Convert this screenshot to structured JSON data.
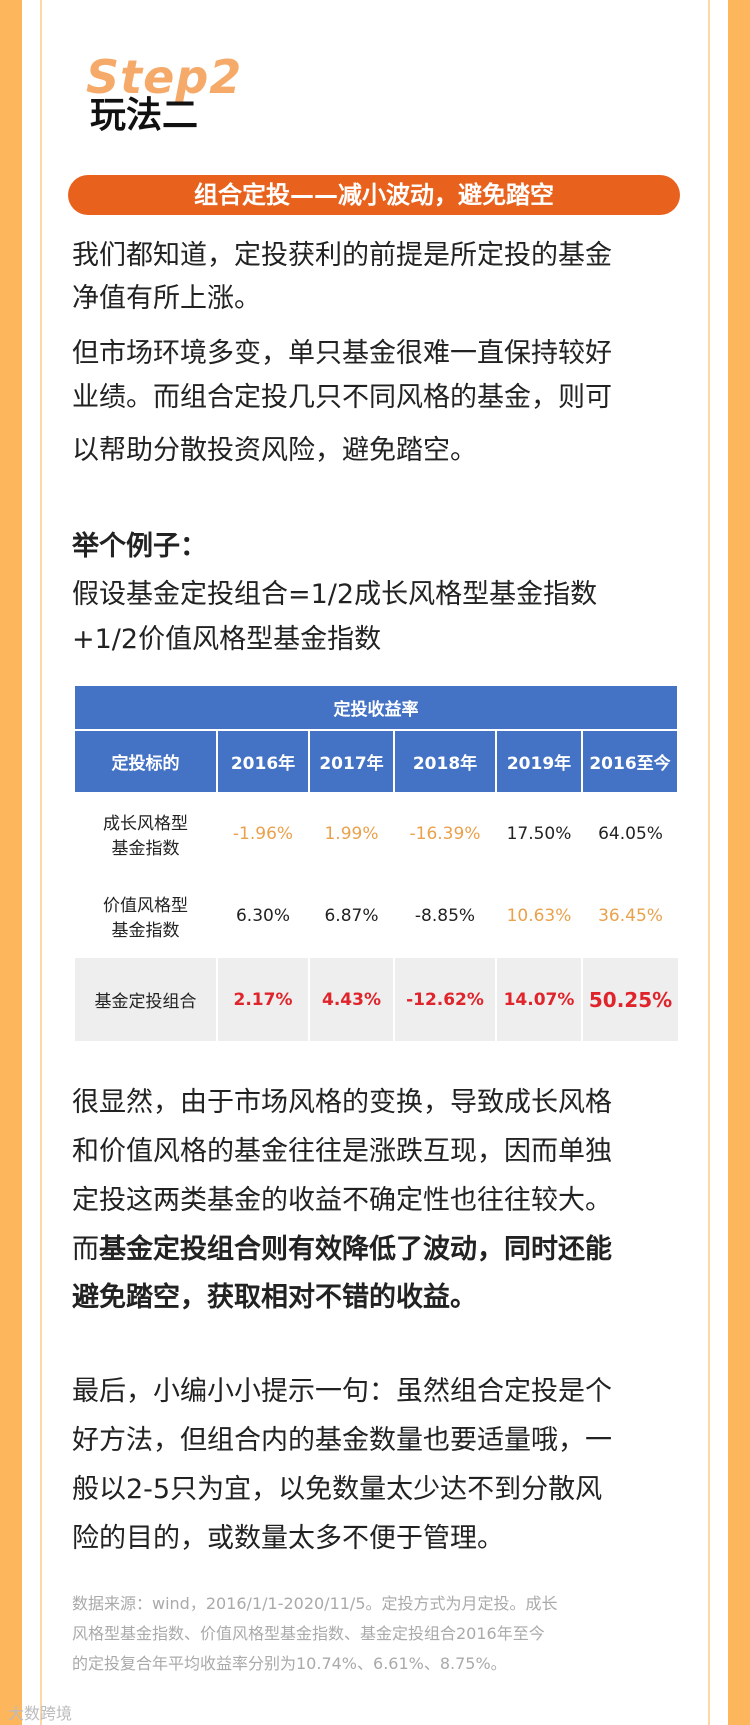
{
  "header": {
    "step": "Step2",
    "title": "玩法二"
  },
  "banner": "组合定投——减小波动，避免踏空",
  "intro": {
    "lines": [
      "我们都知道，定投获利的前提是所定投的基金",
      "净值有所上涨。",
      "但市场环境多变，单只基金很难一直保持较好",
      "业绩。而组合定投几只不同风格的基金，则可",
      "以帮助分散投资风险，避免踏空。"
    ]
  },
  "example": {
    "label": "举个例子：",
    "lines": [
      "假设基金定投组合=1/2成长风格型基金指数",
      "+1/2价值风格型基金指数"
    ]
  },
  "table": {
    "title": "定投收益率",
    "columns": [
      "定投标的",
      "2016年",
      "2017年",
      "2018年",
      "2019年",
      "2016至今"
    ],
    "rows": [
      [
        "成长风格型\n基金指数",
        "-1.96%",
        "1.99%",
        "-16.39%",
        "17.50%",
        "64.05%"
      ],
      [
        "价值风格型\n基金指数",
        "6.30%",
        "6.87%",
        "-8.85%",
        "10.63%",
        "36.45%"
      ],
      [
        "基金定投组合",
        "2.17%",
        "4.43%",
        "-12.62%",
        "14.07%",
        "50.25%"
      ]
    ]
  },
  "conclusion": {
    "lines": [
      "很显然，由于市场风格的变换，导致成长风格",
      "和价值风格的基金往往是涨跌互现，因而单独",
      "定投这两类基金的收益不确定性也往往较大。"
    ],
    "lead": "而",
    "bold": [
      "基金定投组合则有效降低了波动，同时还能",
      "避免踏空，获取相对不错的收益。"
    ]
  },
  "tip": {
    "lines": [
      "最后，小编小小提示一句：虽然组合定投是个",
      "好方法，但组合内的基金数量也要适量哦，一",
      "般以2-5只为宜，以免数量太少达不到分散风",
      "险的目的，或数量太多不便于管理。"
    ]
  },
  "footnote": {
    "lines": [
      "数据来源：wind，2016/1/1-2020/11/5。定投方式为月定投。成长",
      "风格型基金指数、价值风格型基金指数、基金定投组合2016年至今",
      "的定投复合年平均收益率分别为10.74%、6.61%、8.75%。"
    ]
  },
  "watermark": "大数跨境"
}
